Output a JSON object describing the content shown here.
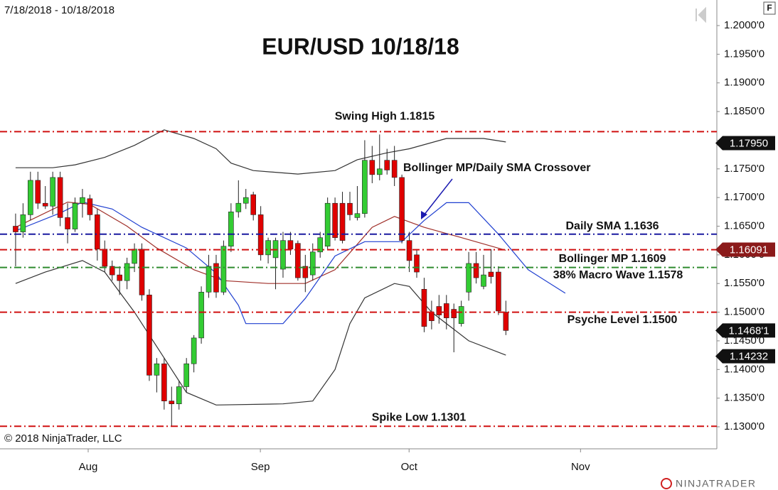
{
  "chart_data": {
    "type": "candlestick",
    "title": "EUR/USD 10/18/18",
    "date_range": "7/18/2018 - 10/18/2018",
    "copyright": "© 2018 NinjaTrader, LLC",
    "brand": "NINJATRADER",
    "badge": "F",
    "xlim": [
      -2.1,
      94.4
    ],
    "xticks": [
      {
        "value": 9.77,
        "label": "Aug"
      },
      {
        "value": 32.95,
        "label": "Sep"
      },
      {
        "value": 52.97,
        "label": "Oct"
      },
      {
        "value": 76.05,
        "label": "Nov"
      }
    ],
    "ylim": [
      1.12616,
      1.20446
    ],
    "yticks": [
      {
        "value": 1.13,
        "label": "1.1300'0"
      },
      {
        "value": 1.135,
        "label": "1.1350'0"
      },
      {
        "value": 1.14,
        "label": "1.1400'0"
      },
      {
        "value": 1.145,
        "label": "1.1450'0"
      },
      {
        "value": 1.15,
        "label": "1.1500'0"
      },
      {
        "value": 1.155,
        "label": "1.1550'0"
      },
      {
        "value": 1.16,
        "label": "1.1600'0"
      },
      {
        "value": 1.165,
        "label": "1.1650'0"
      },
      {
        "value": 1.17,
        "label": "1.1700'0"
      },
      {
        "value": 1.175,
        "label": "1.1750'0"
      },
      {
        "value": 1.18,
        "label": "1.1800'0"
      },
      {
        "value": 1.185,
        "label": "1.1850'0"
      },
      {
        "value": 1.19,
        "label": "1.1900'0"
      },
      {
        "value": 1.195,
        "label": "1.1950'0"
      },
      {
        "value": 1.2,
        "label": "1.2000'0"
      }
    ],
    "up_color": "#33cc33",
    "down_color": "#e00000",
    "open": [
      1.165,
      1.164,
      1.167,
      1.173,
      1.169,
      1.1685,
      1.1735,
      1.1665,
      1.1645,
      1.169,
      1.1698,
      1.167,
      1.161,
      1.158,
      1.1565,
      1.1555,
      1.1585,
      1.161,
      1.153,
      1.139,
      1.141,
      1.1345,
      1.134,
      1.137,
      1.141,
      1.1455,
      1.1535,
      1.1585,
      1.1535,
      1.1615,
      1.1675,
      1.169,
      1.1705,
      1.167,
      1.16,
      1.1595,
      1.1575,
      1.1625,
      1.162,
      1.158,
      1.1565,
      1.1605,
      1.1615,
      1.169,
      1.169,
      1.169,
      1.1665,
      1.1672,
      1.1765,
      1.174,
      1.1765,
      1.1765,
      1.1735,
      1.1625,
      1.16,
      1.154,
      1.15,
      1.151,
      1.1515,
      1.1505,
      1.148,
      1.1535,
      1.1585,
      1.1545,
      1.157,
      1.157,
      1.15
    ],
    "high": [
      1.1672,
      1.169,
      1.1745,
      1.1745,
      1.172,
      1.1745,
      1.1745,
      1.169,
      1.17,
      1.1715,
      1.1705,
      1.168,
      1.1625,
      1.159,
      1.158,
      1.1595,
      1.162,
      1.162,
      1.154,
      1.142,
      1.142,
      1.137,
      1.138,
      1.142,
      1.146,
      1.1545,
      1.16,
      1.16,
      1.1625,
      1.169,
      1.173,
      1.1715,
      1.171,
      1.1685,
      1.163,
      1.163,
      1.164,
      1.164,
      1.1625,
      1.16,
      1.162,
      1.164,
      1.17,
      1.17,
      1.171,
      1.171,
      1.172,
      1.18,
      1.179,
      1.181,
      1.1785,
      1.179,
      1.174,
      1.164,
      1.161,
      1.156,
      1.152,
      1.153,
      1.153,
      1.1515,
      1.152,
      1.1605,
      1.1605,
      1.16,
      1.161,
      1.158,
      1.152
    ],
    "low": [
      1.158,
      1.163,
      1.166,
      1.168,
      1.168,
      1.167,
      1.165,
      1.162,
      1.164,
      1.1665,
      1.166,
      1.159,
      1.157,
      1.1555,
      1.153,
      1.154,
      1.157,
      1.152,
      1.138,
      1.136,
      1.133,
      1.1301,
      1.133,
      1.136,
      1.1395,
      1.1445,
      1.1525,
      1.1525,
      1.153,
      1.1605,
      1.1665,
      1.168,
      1.166,
      1.159,
      1.1585,
      1.154,
      1.156,
      1.16,
      1.1555,
      1.1535,
      1.1555,
      1.1595,
      1.161,
      1.1625,
      1.162,
      1.166,
      1.166,
      1.1665,
      1.1725,
      1.173,
      1.174,
      1.172,
      1.162,
      1.157,
      1.156,
      1.1465,
      1.147,
      1.148,
      1.147,
      1.143,
      1.1475,
      1.152,
      1.155,
      1.154,
      1.155,
      1.1495,
      1.146
    ],
    "close": [
      1.164,
      1.167,
      1.173,
      1.169,
      1.1685,
      1.1735,
      1.1665,
      1.1645,
      1.169,
      1.17,
      1.167,
      1.161,
      1.158,
      1.1565,
      1.1555,
      1.1585,
      1.161,
      1.153,
      1.139,
      1.141,
      1.1345,
      1.134,
      1.137,
      1.141,
      1.1455,
      1.1535,
      1.158,
      1.1535,
      1.1615,
      1.1675,
      1.169,
      1.17,
      1.167,
      1.16,
      1.1625,
      1.1625,
      1.1625,
      1.161,
      1.156,
      1.156,
      1.1605,
      1.163,
      1.169,
      1.163,
      1.1625,
      1.167,
      1.1672,
      1.1765,
      1.174,
      1.175,
      1.1748,
      1.1735,
      1.1625,
      1.159,
      1.157,
      1.1475,
      1.1485,
      1.1495,
      1.149,
      1.149,
      1.151,
      1.1585,
      1.156,
      1.1565,
      1.1562,
      1.1502,
      1.1468
    ],
    "lines": [
      {
        "color": "#333333",
        "x": [
          0,
          5,
          8,
          12,
          16,
          20,
          24,
          27,
          29,
          32,
          38,
          43,
          46,
          50,
          53,
          58,
          63,
          66
        ],
        "values": [
          1.1752,
          1.1752,
          1.1757,
          1.177,
          1.1791,
          1.1818,
          1.1803,
          1.1785,
          1.176,
          1.1747,
          1.1741,
          1.1747,
          1.1766,
          1.1778,
          1.1785,
          1.1803,
          1.1803,
          1.1797
        ]
      },
      {
        "color": "#333333",
        "x": [
          0,
          4,
          9,
          12,
          16,
          20,
          23,
          27,
          36,
          40,
          43,
          45,
          47,
          51,
          53,
          56,
          61,
          66
        ],
        "values": [
          1.155,
          1.157,
          1.159,
          1.157,
          1.15,
          1.142,
          1.136,
          1.1338,
          1.134,
          1.1345,
          1.14,
          1.148,
          1.1525,
          1.155,
          1.1545,
          1.15,
          1.145,
          1.1425
        ]
      },
      {
        "color": "#a0302a",
        "x": [
          0,
          7,
          10,
          15,
          19,
          24,
          28,
          34,
          39,
          43,
          48,
          51,
          55,
          60,
          66
        ],
        "values": [
          1.1648,
          1.1692,
          1.1688,
          1.165,
          1.1612,
          1.1574,
          1.1555,
          1.155,
          1.155,
          1.1574,
          1.1648,
          1.1667,
          1.1648,
          1.163,
          1.1608
        ]
      },
      {
        "color": "#1f3fd0",
        "x": [
          0,
          6,
          9,
          13,
          17,
          23,
          27,
          30,
          31,
          36,
          39,
          43,
          47,
          52,
          55,
          58,
          61,
          65,
          69,
          74
        ],
        "values": [
          1.1642,
          1.1673,
          1.1692,
          1.168,
          1.1648,
          1.1612,
          1.1568,
          1.1512,
          1.148,
          1.148,
          1.1524,
          1.1598,
          1.1623,
          1.1623,
          1.166,
          1.1691,
          1.1691,
          1.1636,
          1.1574,
          1.1533
        ]
      }
    ],
    "levels": [
      {
        "label": "Swing High 1.1815",
        "value": 1.1815,
        "color": "#d01010"
      },
      {
        "label": "Daily SMA 1.1636",
        "value": 1.1636,
        "color": "#1a1aa0"
      },
      {
        "label": "Bollinger MP 1.1609",
        "value": 1.1609,
        "color": "#d01010"
      },
      {
        "label": "38% Macro Wave 1.1578",
        "value": 1.1578,
        "color": "#2e8b2e"
      },
      {
        "label": "Psyche Level 1.1500",
        "value": 1.15,
        "color": "#d01010"
      },
      {
        "label": "Spike Low 1.1301",
        "value": 1.1301,
        "color": "#d01010"
      }
    ],
    "annotation": "Bollinger MP/Daily SMA Crossover",
    "price_markers": {
      "values": [
        1.1795,
        1.16091,
        1.14681,
        1.14232
      ],
      "value_labels": [
        "1.17950",
        "1.16091",
        "1.1468'1",
        "1.14232"
      ],
      "colors": [
        "#111111",
        "#8b1a1a",
        "#111111",
        "#111111"
      ]
    }
  }
}
